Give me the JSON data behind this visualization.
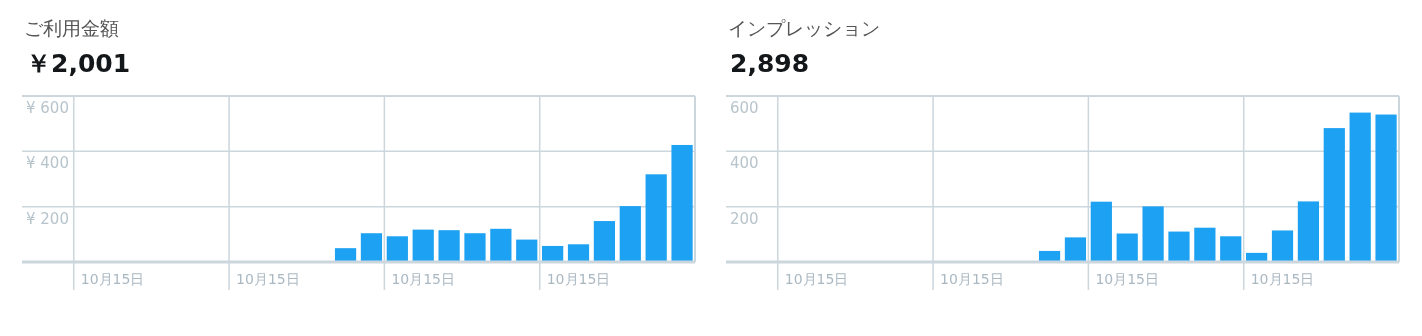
{
  "chart_data": [
    {
      "type": "bar",
      "title": "ご利用金額",
      "subtitle": "￥2,001",
      "categories": [
        null,
        null,
        null,
        "10月15日",
        null,
        null,
        null,
        null,
        null,
        "10月15日",
        null,
        null,
        null,
        null,
        null,
        "10月15日",
        null,
        null,
        null,
        null,
        null,
        "10月15日",
        null,
        null,
        null,
        null
      ],
      "values": [
        null,
        null,
        null,
        null,
        null,
        null,
        null,
        null,
        null,
        null,
        null,
        null,
        50,
        104,
        93,
        117,
        115,
        104,
        120,
        81,
        58,
        64,
        148,
        202,
        317,
        423
      ],
      "color": "#1da1f2",
      "ylim": [
        0,
        600
      ],
      "yticks": [
        {
          "value": 0,
          "label": null
        },
        {
          "value": 200,
          "label": "¥ 200"
        },
        {
          "value": 400,
          "label": "¥ 400"
        },
        {
          "value": 600,
          "label": "¥ 600"
        }
      ],
      "grid": true
    },
    {
      "type": "bar",
      "title": "インプレッション",
      "subtitle": "2,898",
      "categories": [
        null,
        null,
        null,
        "10月15日",
        null,
        null,
        null,
        null,
        null,
        "10月15日",
        null,
        null,
        null,
        null,
        null,
        "10月15日",
        null,
        null,
        null,
        null,
        null,
        "10月15日",
        null,
        null,
        null,
        null
      ],
      "values": [
        null,
        null,
        null,
        null,
        null,
        null,
        null,
        null,
        null,
        null,
        null,
        null,
        40,
        89,
        218,
        103,
        201,
        110,
        124,
        93,
        33,
        114,
        219,
        484,
        540,
        533
      ],
      "color": "#1da1f2",
      "ylim": [
        0,
        600
      ],
      "yticks": [
        {
          "value": 0,
          "label": null
        },
        {
          "value": 200,
          "label": "200"
        },
        {
          "value": 400,
          "label": "400"
        },
        {
          "value": 600,
          "label": "600"
        }
      ],
      "grid": true
    }
  ]
}
